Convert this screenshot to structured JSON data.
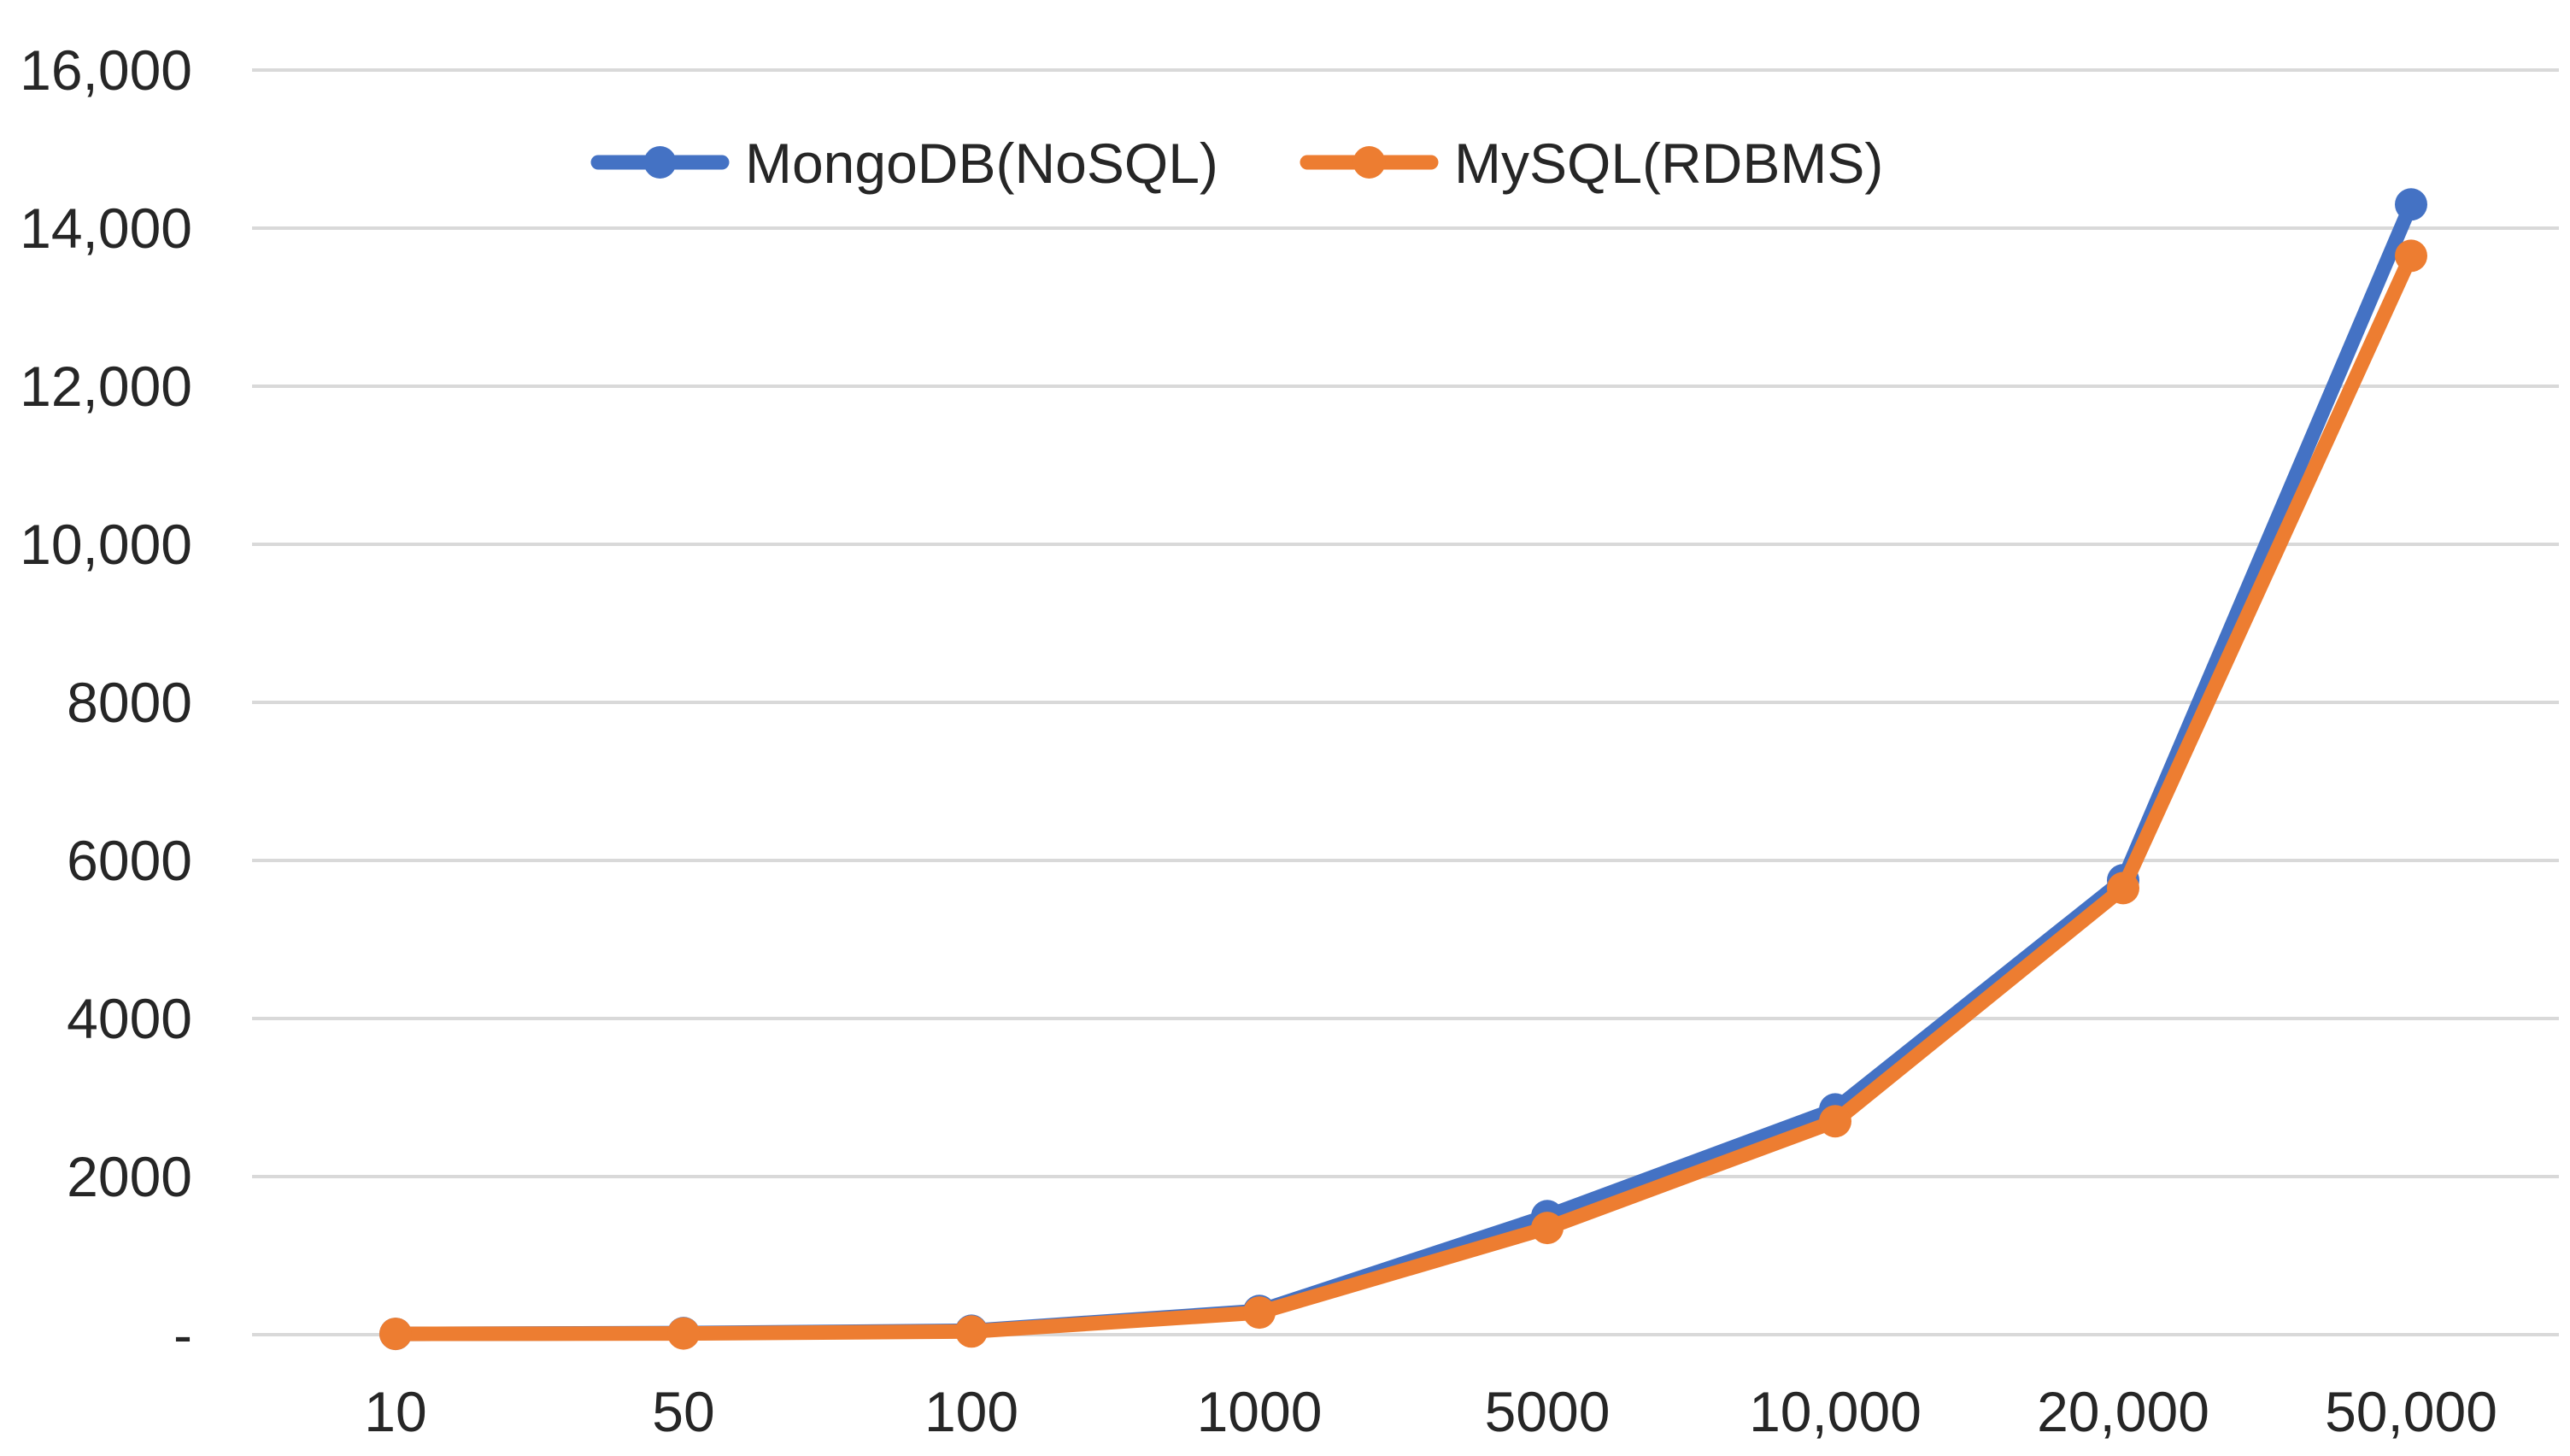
{
  "chart_data": {
    "type": "line",
    "title": "",
    "xlabel": "",
    "ylabel": "",
    "categories": [
      "10",
      "50",
      "100",
      "1000",
      "5000",
      "10,000",
      "20,000",
      "50,000"
    ],
    "ylim": [
      0,
      16000
    ],
    "yticks": [
      {
        "value": 0,
        "label": "-"
      },
      {
        "value": 2000,
        "label": "2000"
      },
      {
        "value": 4000,
        "label": "4000"
      },
      {
        "value": 6000,
        "label": "6000"
      },
      {
        "value": 8000,
        "label": "8000"
      },
      {
        "value": 10000,
        "label": "10,000"
      },
      {
        "value": 12000,
        "label": "12,000"
      },
      {
        "value": 14000,
        "label": "14,000"
      },
      {
        "value": 16000,
        "label": "16,000"
      }
    ],
    "grid": true,
    "legend_position": "top",
    "series": [
      {
        "name": "MongoDB(NoSQL)",
        "color": "#4472C4",
        "values": [
          10,
          20,
          50,
          300,
          1500,
          2850,
          5750,
          14300
        ]
      },
      {
        "name": "MySQL(RDBMS)",
        "color": "#ED7D31",
        "values": [
          10,
          15,
          40,
          280,
          1350,
          2700,
          5650,
          13650
        ]
      }
    ]
  }
}
